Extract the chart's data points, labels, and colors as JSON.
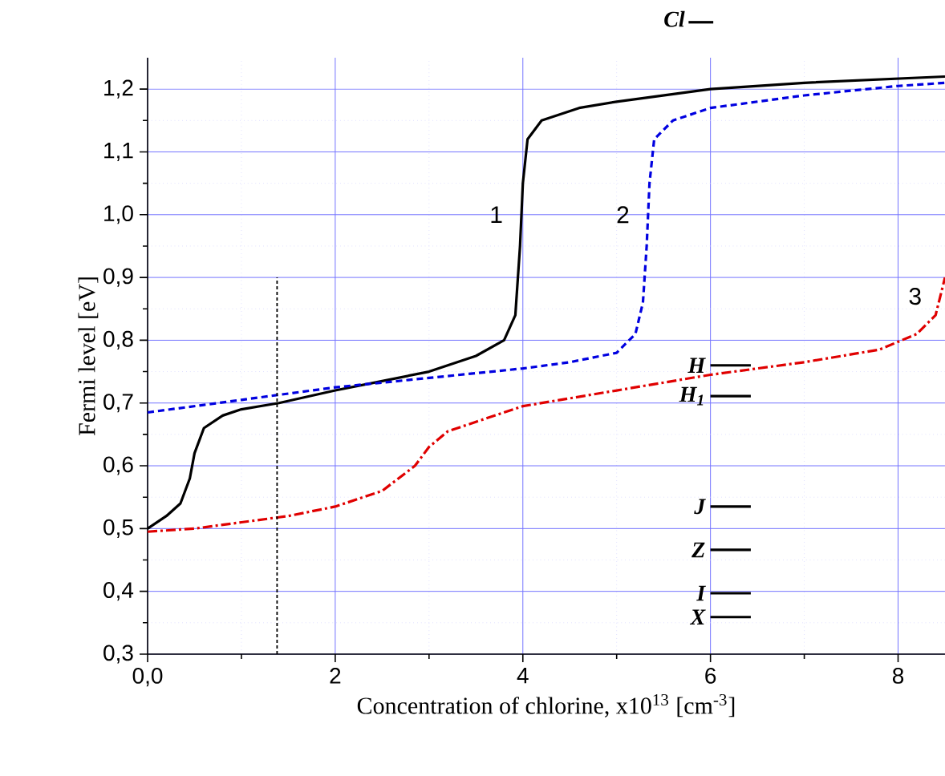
{
  "chart_data": {
    "type": "line",
    "xlabel": "Concentration of chlorine, x10$^{13}$  [cm$^{-3}$]",
    "ylabel": "Fermi level [eV]",
    "xlim": [
      0,
      8.5
    ],
    "ylim": [
      0.3,
      1.25
    ],
    "xticks": [
      {
        "value": 0,
        "label": "0,0"
      },
      2,
      4,
      6,
      8
    ],
    "yticks": [
      {
        "value": 0.3,
        "label": "0,3"
      },
      {
        "value": 0.4,
        "label": "0,4"
      },
      {
        "value": 0.5,
        "label": "0,5"
      },
      {
        "value": 0.6,
        "label": "0,6"
      },
      {
        "value": 0.7,
        "label": "0,7"
      },
      {
        "value": 0.8,
        "label": "0,8"
      },
      {
        "value": 0.9,
        "label": "0,9"
      },
      {
        "value": 1.0,
        "label": "1,0"
      },
      {
        "value": 1.1,
        "label": "1,1"
      },
      {
        "value": 1.2,
        "label": "1,2"
      }
    ],
    "grid": true,
    "marker": "none",
    "series": [
      {
        "name": "1",
        "color": "#000000",
        "line_style": "solid",
        "x": [
          0,
          0.2,
          0.35,
          0.45,
          0.5,
          0.6,
          0.8,
          1.0,
          1.4,
          2.0,
          2.5,
          3.0,
          3.5,
          3.8,
          3.92,
          3.97,
          4.0,
          4.05,
          4.2,
          4.6,
          5.0,
          6.0,
          7.0,
          8.5
        ],
        "values": [
          0.5,
          0.52,
          0.54,
          0.58,
          0.62,
          0.66,
          0.68,
          0.69,
          0.7,
          0.72,
          0.735,
          0.75,
          0.775,
          0.8,
          0.84,
          0.95,
          1.05,
          1.12,
          1.15,
          1.17,
          1.18,
          1.2,
          1.21,
          1.22
        ]
      },
      {
        "name": "2",
        "color": "#0000e0",
        "line_style": "dashed",
        "x": [
          0,
          1,
          2,
          3,
          4,
          4.5,
          5.0,
          5.2,
          5.28,
          5.32,
          5.35,
          5.4,
          5.6,
          6.0,
          7.0,
          8.0,
          8.5
        ],
        "values": [
          0.685,
          0.705,
          0.725,
          0.74,
          0.755,
          0.765,
          0.78,
          0.81,
          0.86,
          0.95,
          1.05,
          1.12,
          1.15,
          1.17,
          1.19,
          1.205,
          1.21
        ]
      },
      {
        "name": "3",
        "color": "#e00000",
        "line_style": "dashdot",
        "x": [
          0,
          0.5,
          1.0,
          1.5,
          2.0,
          2.5,
          2.85,
          3.0,
          3.2,
          3.5,
          4.0,
          5.0,
          6.0,
          7.0,
          7.8,
          8.2,
          8.4,
          8.5
        ],
        "values": [
          0.495,
          0.5,
          0.51,
          0.52,
          0.535,
          0.56,
          0.6,
          0.63,
          0.655,
          0.67,
          0.695,
          0.72,
          0.745,
          0.765,
          0.785,
          0.81,
          0.84,
          0.9
        ]
      },
      {
        "color": "#000000",
        "line_style": "dotted",
        "x": [
          1.38,
          1.38
        ],
        "values": [
          0.3,
          0.9
        ]
      },
      {
        "name": "H",
        "color": "#000000",
        "line_style": "solid",
        "x": [
          6.0,
          6.43
        ],
        "values": [
          0.76,
          0.76
        ]
      },
      {
        "name": "H$_{1}$",
        "color": "#000000",
        "line_style": "solid",
        "x": [
          6.0,
          6.43
        ],
        "values": [
          0.711,
          0.711
        ]
      },
      {
        "name": "J",
        "color": "#000000",
        "line_style": "solid",
        "x": [
          6.0,
          6.43
        ],
        "values": [
          0.535,
          0.535
        ]
      },
      {
        "name": "Z",
        "color": "#000000",
        "line_style": "solid",
        "x": [
          6.0,
          6.43
        ],
        "values": [
          0.466,
          0.466
        ]
      },
      {
        "name": "I",
        "color": "#000000",
        "line_style": "solid",
        "x": [
          6.0,
          6.43
        ],
        "values": [
          0.397,
          0.397
        ]
      },
      {
        "name": "X",
        "color": "#000000",
        "line_style": "solid",
        "x": [
          6.0,
          6.43
        ],
        "values": [
          0.359,
          0.359
        ]
      }
    ],
    "annotations": [
      "Cl"
    ]
  }
}
